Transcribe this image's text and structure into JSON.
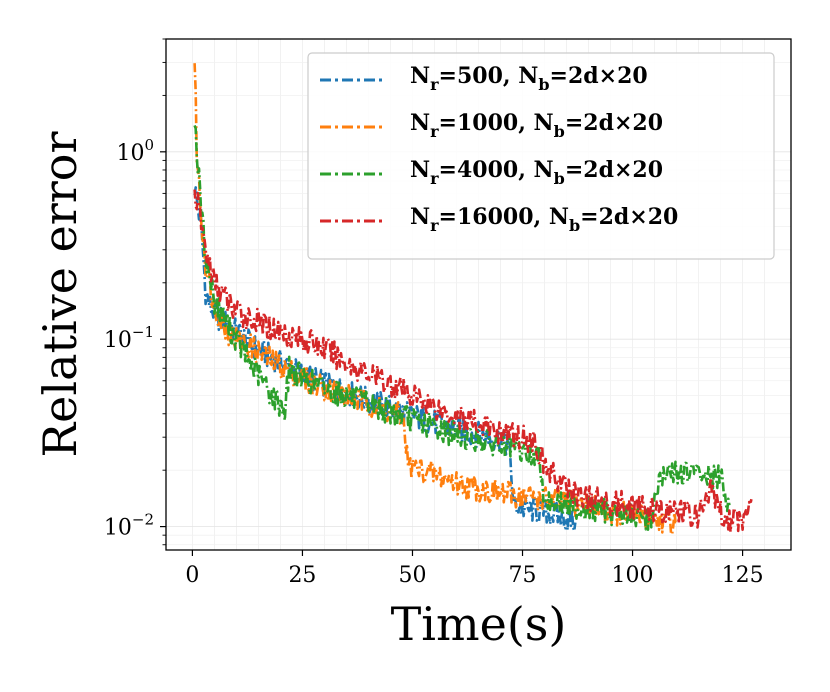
{
  "chart_data": {
    "type": "line",
    "xlabel": "Time(s)",
    "ylabel": "Relative error",
    "xscale": "linear",
    "yscale": "log",
    "xlim": [
      -6,
      136
    ],
    "ylim": [
      0.0075,
      4.0
    ],
    "xticks": [
      0,
      25,
      50,
      75,
      100,
      125
    ],
    "xtick_labels": [
      "0",
      "25",
      "50",
      "75",
      "100",
      "125"
    ],
    "yticks": [
      0.01,
      0.1,
      1
    ],
    "ytick_labels": [
      {
        "base": "10",
        "exp": "−2"
      },
      {
        "base": "10",
        "exp": "−1"
      },
      {
        "base": "10",
        "exp": "0"
      }
    ],
    "grid": true,
    "legend_position": "top-right",
    "series": [
      {
        "name": "Nr=500, Nb=2d×20",
        "legend": {
          "a": "N",
          "a_sub": "r",
          "b": "=500, ",
          "c": "N",
          "c_sub": "b",
          "d": "=2d×20"
        },
        "color": "#1f77b4",
        "x": [
          0.5,
          1,
          2,
          3,
          4,
          6,
          8,
          10,
          13,
          16,
          20,
          25,
          30,
          35,
          40,
          45,
          50,
          55,
          60,
          65,
          70,
          72,
          73,
          75,
          80,
          85,
          87
        ],
        "y": [
          0.65,
          0.55,
          0.4,
          0.18,
          0.15,
          0.13,
          0.12,
          0.11,
          0.095,
          0.085,
          0.075,
          0.065,
          0.058,
          0.052,
          0.047,
          0.043,
          0.039,
          0.036,
          0.033,
          0.031,
          0.029,
          0.027,
          0.013,
          0.0125,
          0.012,
          0.011,
          0.0105
        ]
      },
      {
        "name": "Nr=1000, Nb=2d×20",
        "legend": {
          "a": "N",
          "a_sub": "r",
          "b": "=1000, ",
          "c": "N",
          "c_sub": "b",
          "d": "=2d×20"
        },
        "color": "#ff7f0e",
        "x": [
          0.5,
          1,
          2,
          3,
          5,
          8,
          10,
          13,
          16,
          20,
          25,
          30,
          35,
          40,
          45,
          48,
          49,
          52,
          55,
          58,
          60,
          65,
          70,
          75,
          80,
          85,
          90,
          95,
          100,
          105,
          110
        ],
        "y": [
          3.2,
          1.0,
          0.45,
          0.25,
          0.15,
          0.11,
          0.1,
          0.092,
          0.082,
          0.072,
          0.062,
          0.055,
          0.05,
          0.045,
          0.041,
          0.038,
          0.021,
          0.02,
          0.019,
          0.018,
          0.017,
          0.016,
          0.015,
          0.0145,
          0.014,
          0.0135,
          0.013,
          0.012,
          0.0115,
          0.011,
          0.0105
        ]
      },
      {
        "name": "Nr=4000, Nb=2d×20",
        "legend": {
          "a": "N",
          "a_sub": "r",
          "b": "=4000, ",
          "c": "N",
          "c_sub": "b",
          "d": "=2d×20"
        },
        "color": "#2ca02c",
        "x": [
          0.5,
          1,
          2,
          3,
          5,
          8,
          10,
          13,
          16,
          18,
          20,
          21,
          22,
          25,
          30,
          35,
          40,
          45,
          50,
          55,
          60,
          65,
          70,
          75,
          79,
          80,
          85,
          90,
          95,
          100,
          104,
          106,
          108,
          110,
          115,
          120,
          122
        ],
        "y": [
          1.6,
          1.0,
          0.5,
          0.28,
          0.16,
          0.12,
          0.1,
          0.075,
          0.06,
          0.05,
          0.045,
          0.042,
          0.07,
          0.062,
          0.055,
          0.05,
          0.045,
          0.041,
          0.037,
          0.034,
          0.031,
          0.029,
          0.027,
          0.025,
          0.023,
          0.014,
          0.013,
          0.0125,
          0.012,
          0.0115,
          0.011,
          0.017,
          0.019,
          0.0195,
          0.019,
          0.018,
          0.013
        ]
      },
      {
        "name": "Nr=16000, Nb=2d×20",
        "legend": {
          "a": "N",
          "a_sub": "r",
          "b": "=16000, ",
          "c": "N",
          "c_sub": "b",
          "d": "=2d×20"
        },
        "color": "#d62728",
        "x": [
          0.5,
          1,
          2,
          3,
          5,
          8,
          10,
          13,
          16,
          20,
          25,
          30,
          35,
          40,
          45,
          50,
          55,
          60,
          65,
          70,
          75,
          78,
          80,
          85,
          90,
          95,
          100,
          105,
          110,
          115,
          118,
          120,
          122,
          125,
          127
        ],
        "y": [
          0.6,
          0.55,
          0.42,
          0.3,
          0.2,
          0.16,
          0.14,
          0.13,
          0.12,
          0.11,
          0.1,
          0.09,
          0.075,
          0.065,
          0.058,
          0.05,
          0.044,
          0.039,
          0.035,
          0.032,
          0.03,
          0.028,
          0.021,
          0.016,
          0.014,
          0.0135,
          0.013,
          0.012,
          0.012,
          0.0115,
          0.016,
          0.012,
          0.011,
          0.011,
          0.014
        ]
      }
    ]
  }
}
